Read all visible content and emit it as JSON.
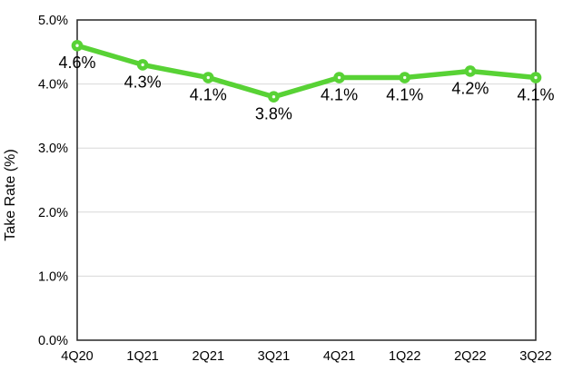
{
  "chart_data": {
    "type": "line",
    "title": "",
    "xlabel": "",
    "ylabel": "Take Rate (%)",
    "categories": [
      "4Q20",
      "1Q21",
      "2Q21",
      "3Q21",
      "4Q21",
      "1Q22",
      "2Q22",
      "3Q22"
    ],
    "series": [
      {
        "name": "Take Rate (%)",
        "values": [
          4.6,
          4.3,
          4.1,
          3.8,
          4.1,
          4.1,
          4.2,
          4.1
        ]
      }
    ],
    "data_labels": [
      "4.6%",
      "4.3%",
      "4.1%",
      "3.8%",
      "4.1%",
      "4.1%",
      "4.2%",
      "4.1%"
    ],
    "ylim": [
      0,
      5
    ],
    "y_ticks": [
      {
        "value": 0,
        "label": "0.0%"
      },
      {
        "value": 1,
        "label": "1.0%"
      },
      {
        "value": 2,
        "label": "2.0%"
      },
      {
        "value": 3,
        "label": "3.0%"
      },
      {
        "value": 4,
        "label": "4.0%"
      },
      {
        "value": 5,
        "label": "5.0%"
      }
    ],
    "grid": true,
    "legend_position": "none",
    "colors": {
      "line": "#58d235",
      "marker_fill": "#58d235",
      "marker_center": "#f4fdef",
      "axis": "#262626",
      "gridline": "#d8d8d8",
      "text": "#000000",
      "background": "#ffffff"
    }
  }
}
